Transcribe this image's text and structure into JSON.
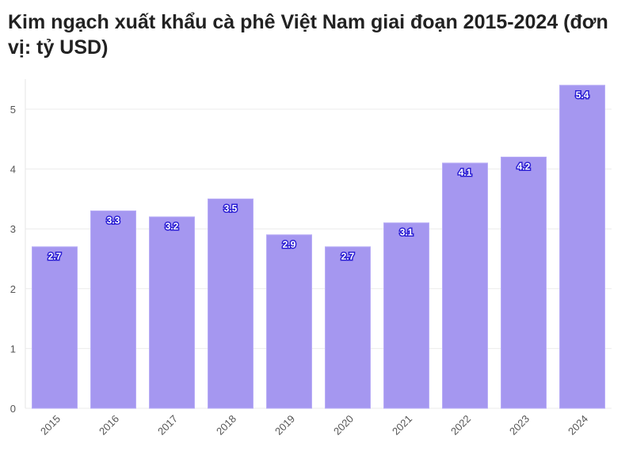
{
  "chart_data": {
    "type": "bar",
    "title": "Kim ngạch xuất khẩu cà phê Việt Nam giai đoạn 2015-2024 (đơn vị: tỷ USD)",
    "categories": [
      "2015",
      "2016",
      "2017",
      "2018",
      "2019",
      "2020",
      "2021",
      "2022",
      "2023",
      "2024"
    ],
    "values": [
      2.7,
      3.3,
      3.2,
      3.5,
      2.9,
      2.7,
      3.1,
      4.1,
      4.2,
      5.4
    ],
    "data_labels": [
      "2.7",
      "3.3",
      "3.2",
      "3.5",
      "2.9",
      "2.7",
      "3.1",
      "4.1",
      "4.2",
      "5.4"
    ],
    "xlabel": "",
    "ylabel": "",
    "ylim": [
      0,
      5.5
    ],
    "yticks": [
      "0",
      "1",
      "2",
      "3",
      "4",
      "5"
    ],
    "grid": true,
    "colors": {
      "bar": "#a597f0",
      "bar_border": "#b8adf6",
      "label_stroke": "#2b1fd4"
    }
  }
}
